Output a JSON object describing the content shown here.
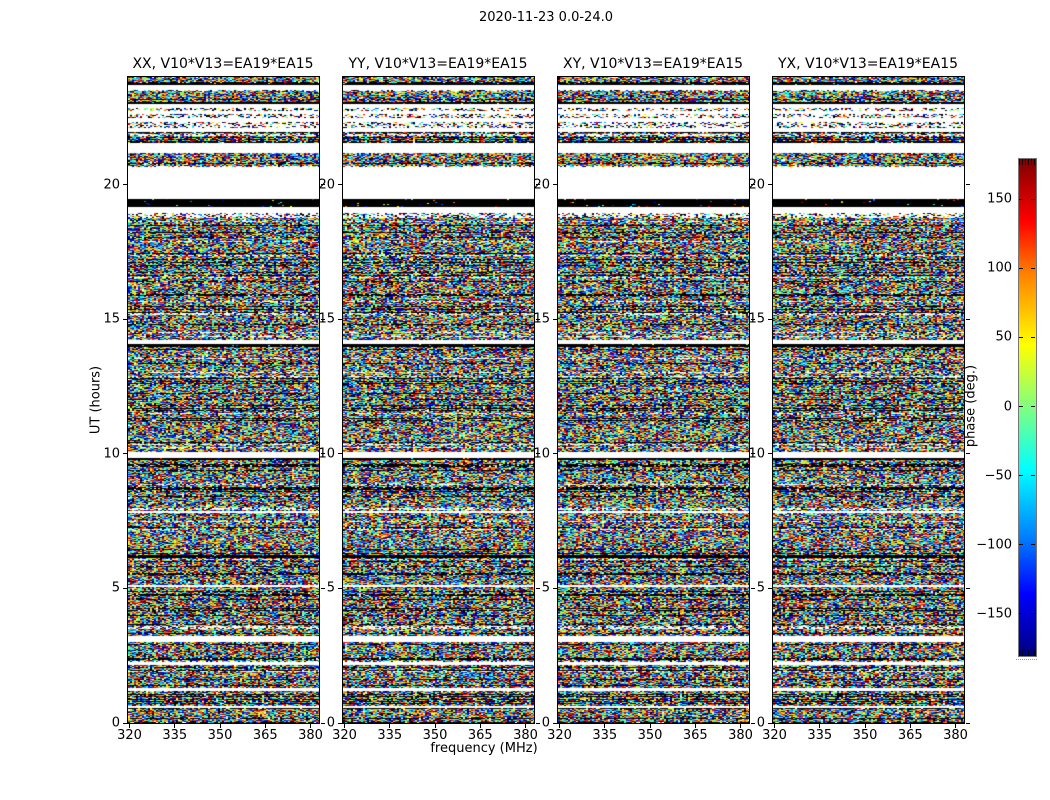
{
  "figure": {
    "title": "2020-11-23 0.0-24.0"
  },
  "chart_data": {
    "type": "heatmap",
    "title": "2020-11-23 0.0-24.0",
    "xlabel": "frequency (MHz)",
    "ylabel": "UT (hours)",
    "xlim": [
      319.5,
      382.8
    ],
    "ylim": [
      0,
      24
    ],
    "xticks": [
      320,
      335,
      350,
      365,
      380
    ],
    "yticks": [
      0,
      5,
      10,
      15,
      20
    ],
    "panels": [
      {
        "label": "XX, V10*V13=EA19*EA15",
        "seed": 101
      },
      {
        "label": "YY, V10*V13=EA19*EA15",
        "seed": 202
      },
      {
        "label": "XY, V10*V13=EA19*EA15",
        "seed": 303
      },
      {
        "label": "YX, V10*V13=EA19*EA15",
        "seed": 404
      }
    ],
    "colorbar": {
      "label": "phase (deg.)",
      "ticks": [
        150,
        100,
        50,
        0,
        -50,
        -100,
        -150
      ],
      "range": [
        -180,
        180
      ],
      "colormap": "jet"
    },
    "time_bands": [
      [
        23.7,
        23.78,
        "black"
      ],
      [
        23.5,
        23.7,
        "white"
      ],
      [
        22.98,
        23.08,
        "black"
      ],
      [
        22.84,
        22.98,
        "white"
      ],
      [
        22.72,
        22.84,
        "sparse"
      ],
      [
        22.62,
        22.72,
        "white"
      ],
      [
        22.46,
        22.62,
        "sparse"
      ],
      [
        22.32,
        22.46,
        "white"
      ],
      [
        22.12,
        22.32,
        "sparse"
      ],
      [
        21.95,
        22.12,
        "white"
      ],
      [
        21.18,
        21.55,
        "white"
      ],
      [
        19.46,
        20.66,
        "white"
      ],
      [
        19.16,
        19.46,
        "black"
      ],
      [
        18.94,
        19.16,
        "white"
      ],
      [
        18.76,
        18.94,
        "sparse"
      ],
      [
        14.07,
        14.22,
        "white"
      ],
      [
        13.96,
        14.07,
        "black"
      ],
      [
        9.84,
        10.06,
        "white"
      ],
      [
        9.76,
        9.84,
        "black"
      ],
      [
        7.79,
        7.88,
        "white"
      ],
      [
        6.12,
        6.24,
        "black"
      ],
      [
        5.04,
        5.12,
        "white"
      ],
      [
        3.0,
        3.22,
        "white"
      ],
      [
        2.15,
        2.26,
        "white"
      ],
      [
        1.18,
        1.3,
        "white"
      ],
      [
        0.55,
        0.62,
        "white"
      ]
    ],
    "noise": {
      "row_seed": 7331,
      "dark_row_prob": 0.15,
      "light_row_prob": 0.05,
      "pixel_black_prob": 0.09,
      "pixel_white_prob": 0.03
    },
    "palette": {
      "background": "#ffffff",
      "frame": "#000000",
      "jet_low": "#00007f",
      "jet_high": "#7f0000"
    }
  }
}
